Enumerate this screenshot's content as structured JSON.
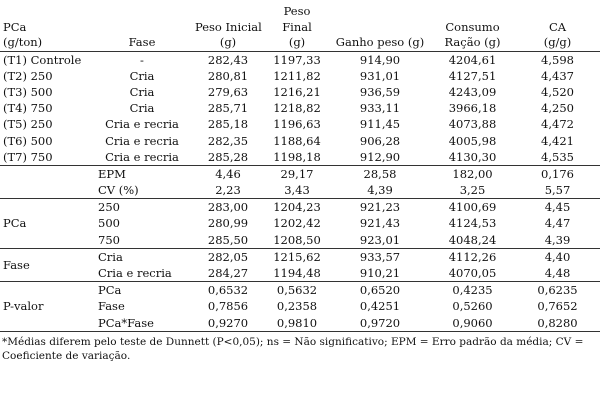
{
  "table": {
    "header": [
      [
        "PCa",
        "(g/ton)"
      ],
      [
        "Fase"
      ],
      [
        "Peso Inicial",
        "(g)"
      ],
      [
        "Peso",
        "Final",
        "(g)"
      ],
      [
        "Ganho peso (g)"
      ],
      [
        "Consumo",
        "Ração (g)"
      ],
      [
        "CA",
        "(g/g)"
      ]
    ],
    "treatments": [
      [
        "(T1) Controle",
        "-",
        "282,43",
        "1197,33",
        "914,90",
        "4204,61",
        "4,598"
      ],
      [
        "(T2) 250",
        "Cria",
        "280,81",
        "1211,82",
        "931,01",
        "4127,51",
        "4,437"
      ],
      [
        "(T3) 500",
        "Cria",
        "279,63",
        "1216,21",
        "936,59",
        "4243,09",
        "4,520"
      ],
      [
        "(T4) 750",
        "Cria",
        "285,71",
        "1218,82",
        "933,11",
        "3966,18",
        "4,250"
      ],
      [
        "(T5) 250",
        "Cria e recria",
        "285,18",
        "1196,63",
        "911,45",
        "4073,88",
        "4,472"
      ],
      [
        "(T6) 500",
        "Cria e recria",
        "282,35",
        "1188,64",
        "906,28",
        "4005,98",
        "4,421"
      ],
      [
        "(T7) 750",
        "Cria e recria",
        "285,28",
        "1198,18",
        "912,90",
        "4130,30",
        "4,535"
      ]
    ],
    "sections": [
      {
        "rows": [
          [
            "EPM",
            "4,46",
            "29,17",
            "28,58",
            "182,00",
            "0,176"
          ],
          [
            "CV (%)",
            "2,23",
            "3,43",
            "4,39",
            "3,25",
            "5,57"
          ]
        ]
      },
      {
        "label": "PCa",
        "rows": [
          [
            "250",
            "283,00",
            "1204,23",
            "921,23",
            "4100,69",
            "4,45"
          ],
          [
            "500",
            "280,99",
            "1202,42",
            "921,43",
            "4124,53",
            "4,47"
          ],
          [
            "750",
            "285,50",
            "1208,50",
            "923,01",
            "4048,24",
            "4,39"
          ]
        ]
      },
      {
        "label": "Fase",
        "rows": [
          [
            "Cria",
            "282,05",
            "1215,62",
            "933,57",
            "4112,26",
            "4,40"
          ],
          [
            "Cria e recria",
            "284,27",
            "1194,48",
            "910,21",
            "4070,05",
            "4,48"
          ]
        ]
      },
      {
        "label": "P-valor",
        "rows": [
          [
            "PCa",
            "0,6532",
            "0,5632",
            "0,6520",
            "0,4235",
            "0,6235"
          ],
          [
            "Fase",
            "0,7856",
            "0,2358",
            "0,4251",
            "0,5260",
            "0,7652"
          ],
          [
            "PCa*Fase",
            "0,9270",
            "0,9810",
            "0,9720",
            "0,9060",
            "0,8280"
          ]
        ]
      }
    ]
  },
  "footnote": "*Médias diferem pelo teste de Dunnett (P<0,05); ns = Não significativo; EPM = Erro padrão da média; CV = Coeficiente de variação."
}
